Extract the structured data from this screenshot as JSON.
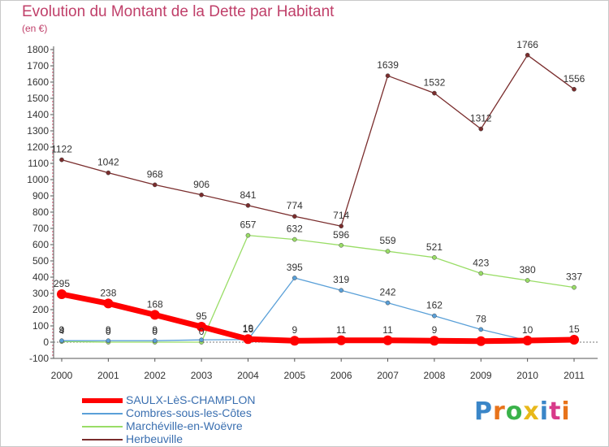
{
  "header": {
    "title": "Evolution du Montant de la Dette par Habitant",
    "subtitle": "(en €)"
  },
  "logo": {
    "text": "Proxiti",
    "letter_colors": [
      "#3a86c8",
      "#e8731a",
      "#3ab24a",
      "#e8b81a",
      "#3a86c8",
      "#d83a8a",
      "#e8731a"
    ]
  },
  "chart_data": {
    "type": "line",
    "title": "Evolution du Montant de la Dette par Habitant",
    "subtitle": "(en €)",
    "xlabel": "",
    "ylabel": "",
    "categories": [
      "2000",
      "2001",
      "2002",
      "2003",
      "2004",
      "2005",
      "2006",
      "2007",
      "2008",
      "2009",
      "2010",
      "2011"
    ],
    "ylim": [
      -100,
      1800
    ],
    "yticks": [
      -100,
      0,
      100,
      200,
      300,
      400,
      500,
      600,
      700,
      800,
      900,
      1000,
      1100,
      1200,
      1300,
      1400,
      1500,
      1600,
      1700,
      1800
    ],
    "grid": false,
    "legend_position": "bottom-left",
    "series": [
      {
        "name": "SAULX-LèS-CHAMPLON",
        "color": "#ff0000",
        "values": [
          295,
          238,
          168,
          95,
          19,
          9,
          11,
          11,
          9,
          6,
          10,
          15
        ],
        "labels": [
          "295",
          "238",
          "168",
          "95",
          "19",
          "9",
          "11",
          "11",
          "9",
          "",
          "10",
          "15"
        ]
      },
      {
        "name": "Combres-sous-les-Côtes",
        "color": "#5aa0d8",
        "values": [
          9,
          9,
          9,
          14,
          16,
          395,
          319,
          242,
          162,
          78,
          10,
          10
        ],
        "labels": [
          "9",
          "9",
          "9",
          "",
          "16",
          "395",
          "319",
          "242",
          "162",
          "78",
          "",
          ""
        ]
      },
      {
        "name": "Marchéville-en-Woëvre",
        "color": "#99dd66",
        "values": [
          4,
          0,
          0,
          0,
          657,
          632,
          596,
          559,
          521,
          423,
          380,
          337
        ],
        "labels": [
          "4",
          "0",
          "0",
          "0",
          "657",
          "632",
          "596",
          "559",
          "521",
          "423",
          "380",
          "337"
        ]
      },
      {
        "name": "Herbeuville",
        "color": "#7a2d2d",
        "values": [
          1122,
          1042,
          968,
          906,
          841,
          774,
          714,
          1639,
          1532,
          1312,
          1766,
          1556
        ],
        "labels": [
          "1122",
          "1042",
          "968",
          "906",
          "841",
          "774",
          "714",
          "1639",
          "1532",
          "1312",
          "1766",
          "1556"
        ]
      }
    ]
  }
}
